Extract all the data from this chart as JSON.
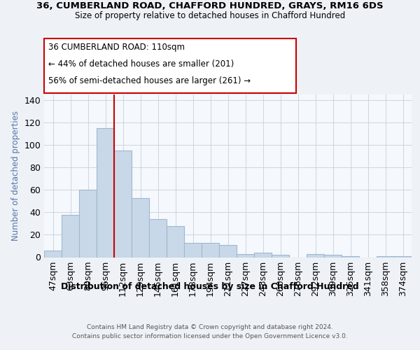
{
  "title1": "36, CUMBERLAND ROAD, CHAFFORD HUNDRED, GRAYS, RM16 6DS",
  "title2": "Size of property relative to detached houses in Chafford Hundred",
  "xlabel": "Distribution of detached houses by size in Chafford Hundred",
  "ylabel": "Number of detached properties",
  "categories": [
    "47sqm",
    "63sqm",
    "80sqm",
    "96sqm",
    "112sqm",
    "129sqm",
    "145sqm",
    "161sqm",
    "178sqm",
    "194sqm",
    "211sqm",
    "227sqm",
    "243sqm",
    "260sqm",
    "276sqm",
    "292sqm",
    "309sqm",
    "325sqm",
    "341sqm",
    "358sqm",
    "374sqm"
  ],
  "values": [
    6,
    38,
    60,
    115,
    95,
    53,
    34,
    28,
    13,
    13,
    11,
    3,
    4,
    2,
    0,
    3,
    2,
    1,
    0,
    1,
    1
  ],
  "bar_color": "#c8d8e8",
  "bar_edge_color": "#a0b8d0",
  "vline_color": "#cc0000",
  "annotation_line1": "36 CUMBERLAND ROAD: 110sqm",
  "annotation_line2": "← 44% of detached houses are smaller (201)",
  "annotation_line3": "56% of semi-detached houses are larger (261) →",
  "annotation_box_color": "#ffffff",
  "annotation_box_edge_color": "#cc0000",
  "ylim": [
    0,
    145
  ],
  "yticks": [
    0,
    20,
    40,
    60,
    80,
    100,
    120,
    140
  ],
  "footnote1": "Contains HM Land Registry data © Crown copyright and database right 2024.",
  "footnote2": "Contains public sector information licensed under the Open Government Licence v3.0.",
  "background_color": "#eef2f7",
  "plot_bg_color": "#f5f8fc",
  "grid_color": "#c8d0dc",
  "ylabel_color": "#5577aa"
}
